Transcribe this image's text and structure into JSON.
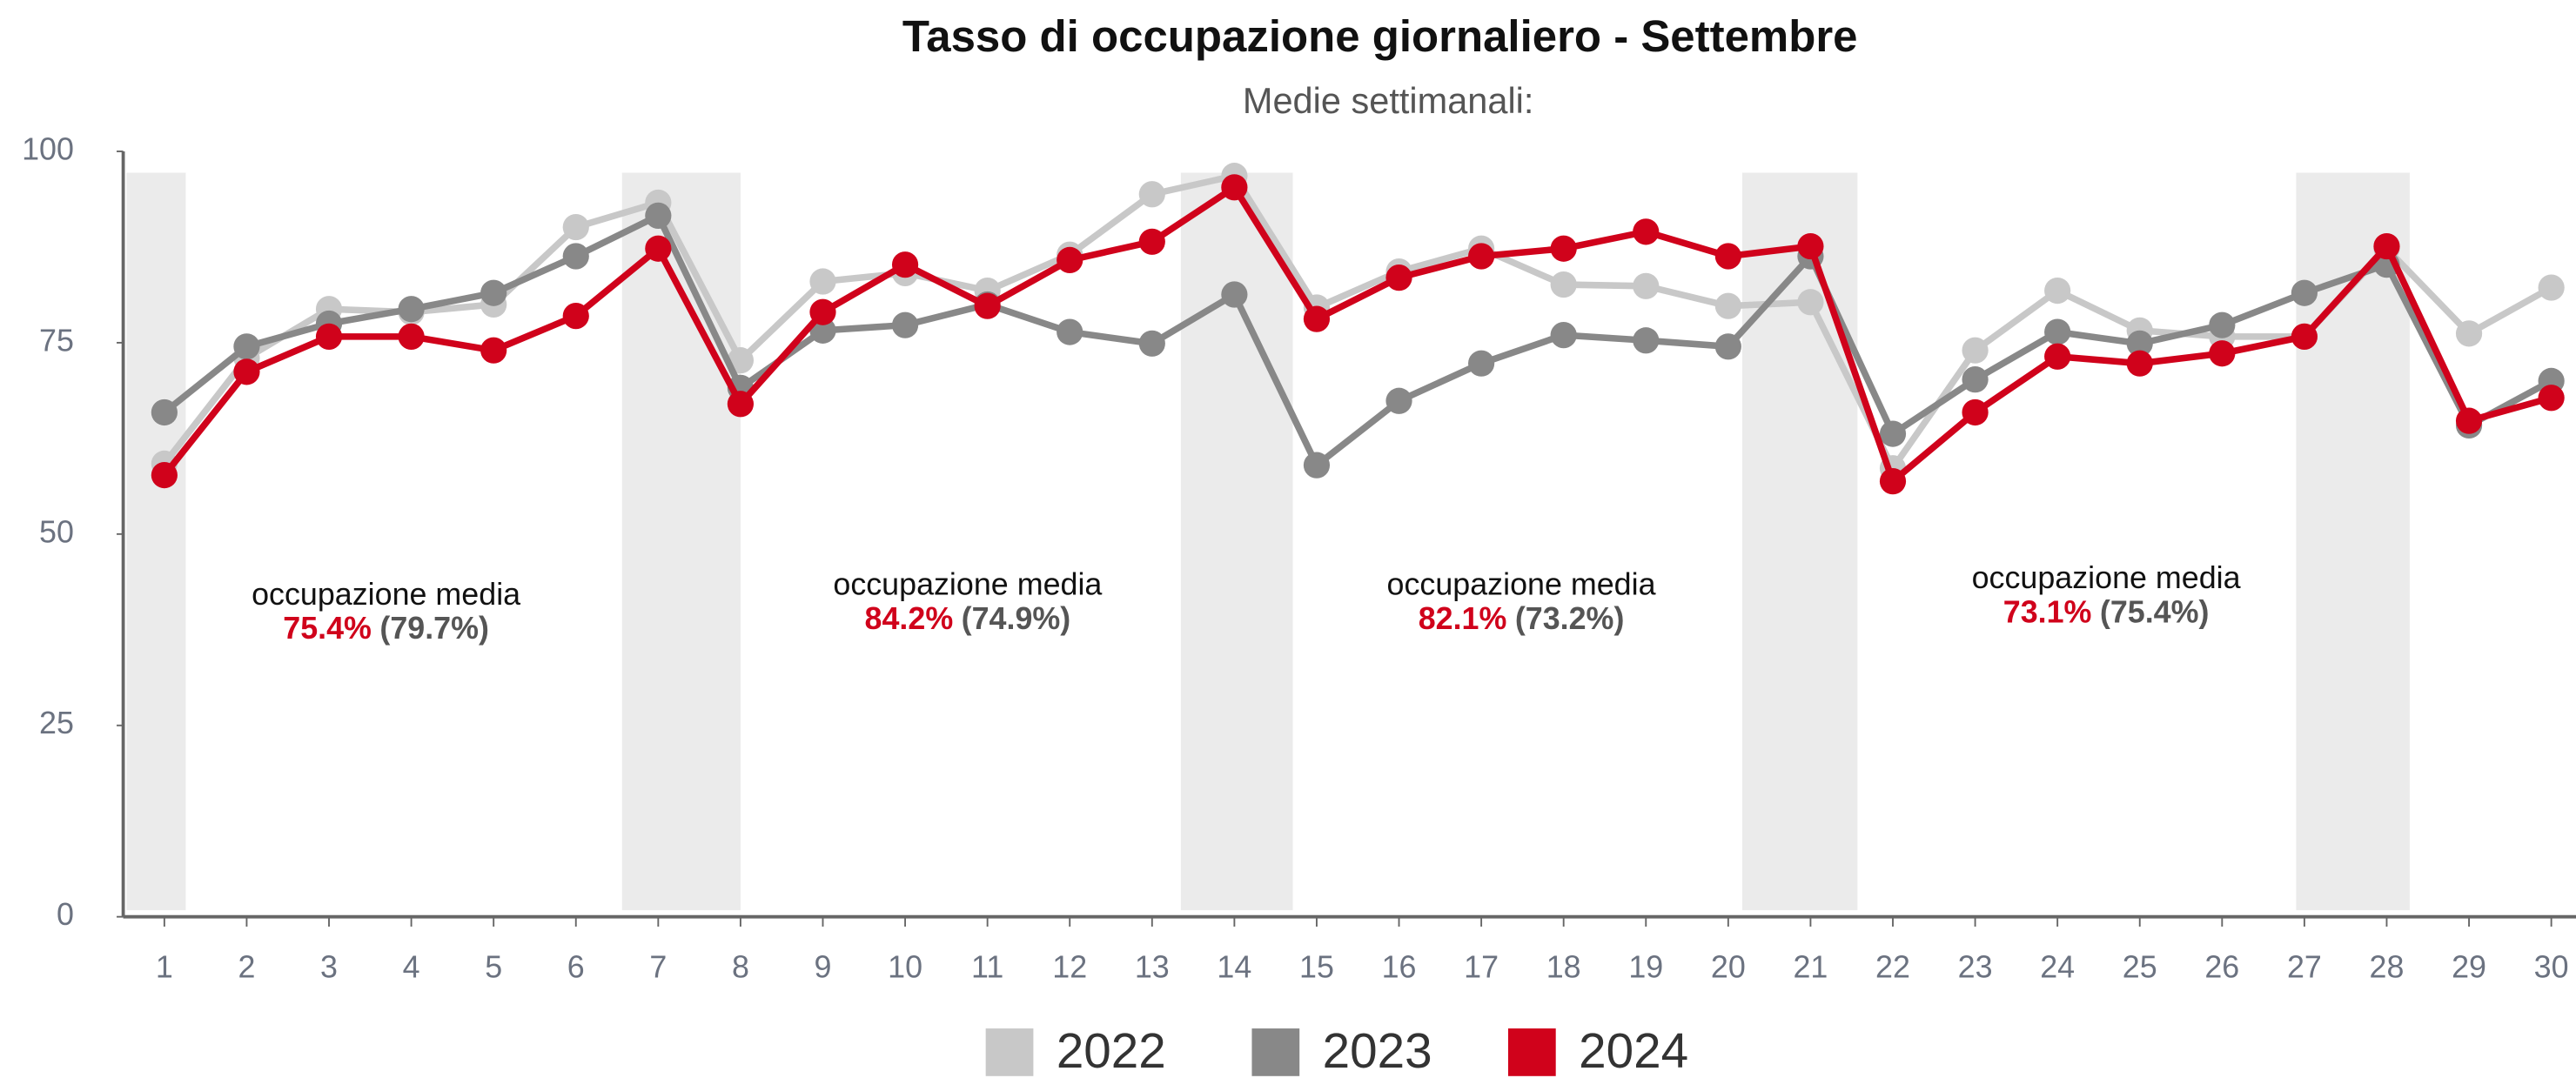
{
  "chart_data": {
    "type": "line",
    "title": "Tasso di occupazione giornaliero - Settembre",
    "subtitle": "Medie settimanali:",
    "x": [
      1,
      2,
      3,
      4,
      5,
      6,
      7,
      8,
      9,
      10,
      11,
      12,
      13,
      14,
      15,
      16,
      17,
      18,
      19,
      20,
      21,
      22,
      23,
      24,
      25,
      26,
      27,
      28,
      29,
      30
    ],
    "xlim": [
      0.5,
      30.3
    ],
    "xticks": [
      1,
      2,
      3,
      4,
      5,
      6,
      7,
      8,
      9,
      10,
      11,
      12,
      13,
      14,
      15,
      16,
      17,
      18,
      19,
      20,
      21,
      22,
      23,
      24,
      25,
      26,
      27,
      28,
      29,
      30
    ],
    "ylim": [
      0,
      100
    ],
    "yticks": [
      0,
      25,
      50,
      75,
      100
    ],
    "bands": [
      [
        0.54,
        1.26
      ],
      [
        6.56,
        8.0
      ],
      [
        13.35,
        14.71
      ],
      [
        20.17,
        21.57
      ],
      [
        26.9,
        28.28
      ]
    ],
    "series": [
      {
        "name": "2022",
        "color": "#c8c8c8",
        "values": [
          59.2,
          73,
          79.4,
          79,
          80,
          90.1,
          93.3,
          72.7,
          83,
          84.1,
          81.8,
          86.5,
          94.4,
          96.8,
          79.6,
          84.3,
          87.3,
          82.6,
          82.4,
          79.8,
          80.3,
          58.6,
          74,
          81.8,
          76.6,
          75.8,
          75.8,
          87.3,
          76.2,
          82.2
        ]
      },
      {
        "name": "2023",
        "color": "#888888",
        "values": [
          65.9,
          74.5,
          77.5,
          79.4,
          81.5,
          86.3,
          91.6,
          69.1,
          76.6,
          77.3,
          80,
          76.4,
          74.9,
          81.3,
          59,
          67.4,
          72.3,
          76,
          75.3,
          74.5,
          86.3,
          63.1,
          70.2,
          76.4,
          74.9,
          77.3,
          81.5,
          85.2,
          64.2,
          70
        ]
      },
      {
        "name": "2024",
        "color": "#d0021b",
        "values": [
          57.7,
          71.2,
          75.8,
          75.8,
          74,
          78.5,
          87.3,
          67,
          79,
          85.2,
          79.8,
          85.8,
          88.2,
          95.3,
          78.1,
          83.5,
          86.3,
          87.3,
          89.5,
          86.3,
          87.6,
          56.9,
          65.9,
          73.2,
          72.3,
          73.6,
          75.8,
          87.6,
          64.8,
          67.8
        ]
      }
    ],
    "annotations": [
      {
        "text": "occupazione media",
        "current": "75.4%",
        "previous": "(79.7%)"
      },
      {
        "text": "occupazione media",
        "current": "84.2%",
        "previous": "(74.9%)"
      },
      {
        "text": "occupazione media",
        "current": "82.1%",
        "previous": "(73.2%)"
      },
      {
        "text": "occupazione media",
        "current": "73.1%",
        "previous": "(75.4%)"
      }
    ]
  }
}
